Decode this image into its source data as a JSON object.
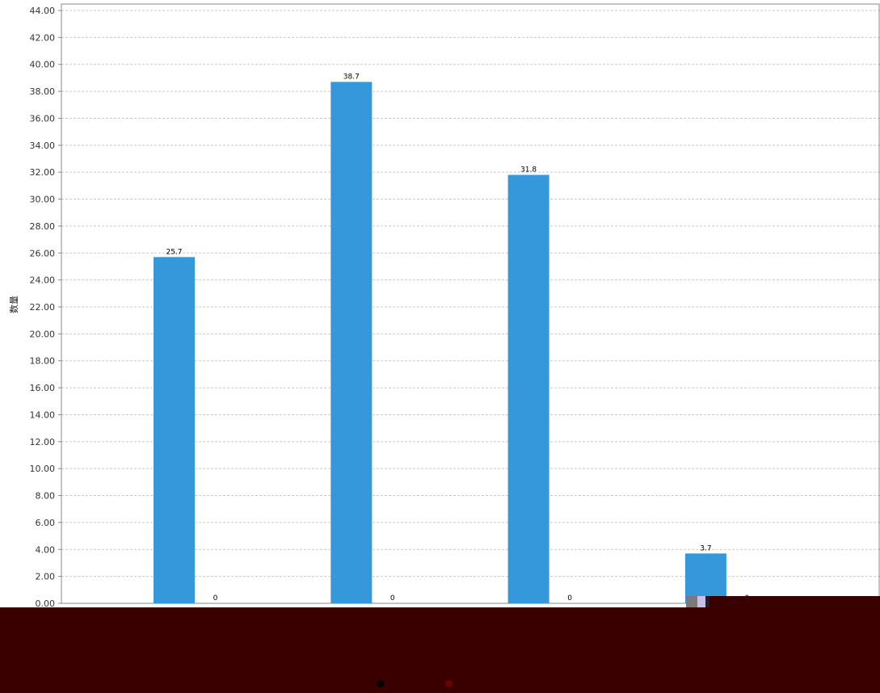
{
  "chart_data": {
    "type": "bar",
    "ylabel": "数量",
    "ylim": [
      0,
      44
    ],
    "ytick_step": 2,
    "ytick_labels": [
      "0.00",
      "2.00",
      "4.00",
      "6.00",
      "8.00",
      "10.00",
      "12.00",
      "14.00",
      "16.00",
      "18.00",
      "20.00",
      "22.00",
      "24.00",
      "26.00",
      "28.00",
      "30.00",
      "32.00",
      "34.00",
      "36.00",
      "38.00",
      "40.00",
      "42.00",
      "44.00"
    ],
    "grid": true,
    "groups": [
      {
        "values": [
          25.7,
          0
        ],
        "labels": [
          "25.7",
          "0"
        ]
      },
      {
        "values": [
          38.7,
          0
        ],
        "labels": [
          "38.7",
          "0"
        ]
      },
      {
        "values": [
          31.8,
          0
        ],
        "labels": [
          "31.8",
          "0"
        ]
      },
      {
        "values": [
          3.7,
          0
        ],
        "labels": [
          "3.7",
          "0"
        ]
      }
    ],
    "series_colors": [
      "#3498db",
      "#e74c3c"
    ]
  },
  "colors": {
    "bar": "#3498db",
    "grid": "#c8c8c8",
    "axis": "#888888",
    "bottom_band": "#3a0000",
    "dot_black": "#000000",
    "dot_red": "#6a0000"
  }
}
